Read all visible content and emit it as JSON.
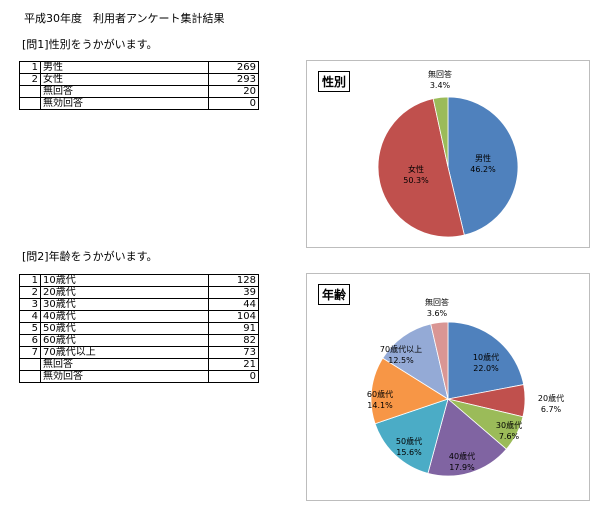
{
  "page": {
    "title": "平成30年度　利用者アンケート集計結果"
  },
  "q1": {
    "heading": "[問1]性別をうかがいます。",
    "rows": [
      {
        "no": "1",
        "label": "男性",
        "value": "269"
      },
      {
        "no": "2",
        "label": "女性",
        "value": "293"
      },
      {
        "no": "",
        "label": "無回答",
        "value": "20"
      },
      {
        "no": "",
        "label": "無効回答",
        "value": "0"
      }
    ]
  },
  "q2": {
    "heading": "[問2]年齢をうかがいます。",
    "rows": [
      {
        "no": "1",
        "label": "10歳代",
        "value": "128"
      },
      {
        "no": "2",
        "label": "20歳代",
        "value": "39"
      },
      {
        "no": "3",
        "label": "30歳代",
        "value": "44"
      },
      {
        "no": "4",
        "label": "40歳代",
        "value": "104"
      },
      {
        "no": "5",
        "label": "50歳代",
        "value": "91"
      },
      {
        "no": "6",
        "label": "60歳代",
        "value": "82"
      },
      {
        "no": "7",
        "label": "70歳代以上",
        "value": "73"
      },
      {
        "no": "",
        "label": "無回答",
        "value": "21"
      },
      {
        "no": "",
        "label": "無効回答",
        "value": "0"
      }
    ]
  },
  "chart_data": [
    {
      "type": "pie",
      "title": "性別",
      "slices": [
        {
          "label": "男性",
          "value": 46.2,
          "pct_text": "46.2%",
          "color": "#4f81bd"
        },
        {
          "label": "女性",
          "value": 50.3,
          "pct_text": "50.3%",
          "color": "#c0504d"
        },
        {
          "label": "無回答",
          "value": 3.4,
          "pct_text": "3.4%",
          "color": "#9bbb59"
        }
      ]
    },
    {
      "type": "pie",
      "title": "年齢",
      "slices": [
        {
          "label": "10歳代",
          "value": 22.0,
          "pct_text": "22.0%",
          "color": "#4f81bd"
        },
        {
          "label": "20歳代",
          "value": 6.7,
          "pct_text": "6.7%",
          "color": "#c0504d"
        },
        {
          "label": "30歳代",
          "value": 7.6,
          "pct_text": "7.6%",
          "color": "#9bbb59"
        },
        {
          "label": "40歳代",
          "value": 17.9,
          "pct_text": "17.9%",
          "color": "#8064a2"
        },
        {
          "label": "50歳代",
          "value": 15.6,
          "pct_text": "15.6%",
          "color": "#4bacc6"
        },
        {
          "label": "60歳代",
          "value": 14.1,
          "pct_text": "14.1%",
          "color": "#f79646"
        },
        {
          "label": "70歳代以上",
          "value": 12.5,
          "pct_text": "12.5%",
          "color": "#94aad6"
        },
        {
          "label": "無回答",
          "value": 3.6,
          "pct_text": "3.6%",
          "color": "#d99694"
        }
      ]
    }
  ]
}
